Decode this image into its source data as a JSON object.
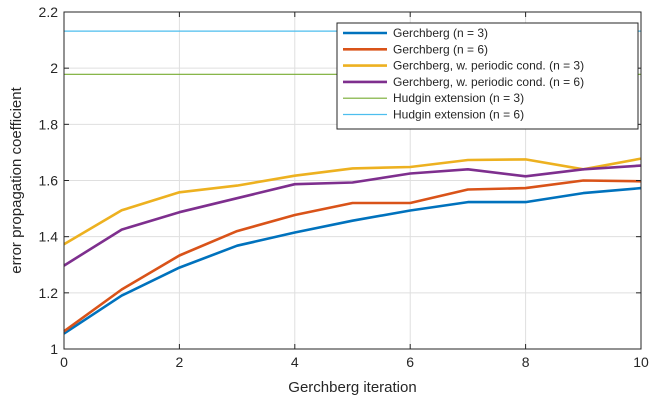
{
  "chart_data": {
    "type": "line",
    "xlabel": "Gerchberg iteration",
    "ylabel": "error propagation coefficient",
    "xlim": [
      0,
      10
    ],
    "ylim": [
      1,
      2.2
    ],
    "grid": true,
    "legend_position": "top-right",
    "xticks": [
      "0",
      "2",
      "4",
      "6",
      "8",
      "10"
    ],
    "yticks": [
      "1",
      "1.2",
      "1.4",
      "1.6",
      "1.8",
      "2",
      "2.2"
    ],
    "x": [
      0,
      1,
      2,
      3,
      4,
      5,
      6,
      7,
      8,
      9,
      10
    ],
    "series": [
      {
        "name": "Gerchberg (n = 3)",
        "color": "#0072BD",
        "values": [
          1.055,
          1.19,
          1.29,
          1.368,
          1.415,
          1.457,
          1.493,
          1.523,
          1.523,
          1.555,
          1.573
        ]
      },
      {
        "name": "Gerchberg (n = 6)",
        "color": "#D95319",
        "values": [
          1.063,
          1.212,
          1.333,
          1.42,
          1.477,
          1.52,
          1.52,
          1.568,
          1.573,
          1.6,
          1.597
        ]
      },
      {
        "name": "Gerchberg, w. periodic cond. (n = 3)",
        "color": "#EDB120",
        "values": [
          1.373,
          1.494,
          1.558,
          1.582,
          1.617,
          1.643,
          1.648,
          1.673,
          1.675,
          1.64,
          1.678
        ]
      },
      {
        "name": "Gerchberg, w. periodic cond. (n = 6)",
        "color": "#7E2F8E",
        "values": [
          1.297,
          1.425,
          1.487,
          1.537,
          1.587,
          1.593,
          1.625,
          1.64,
          1.615,
          1.64,
          1.653
        ]
      },
      {
        "name": "Hudgin extension (n = 3)",
        "color": "#77AC30",
        "values": [
          1.978,
          1.978,
          1.978,
          1.978,
          1.978,
          1.978,
          1.978,
          1.978,
          1.978,
          1.978,
          1.978
        ]
      },
      {
        "name": "Hudgin extension (n = 6)",
        "color": "#4DBEEE",
        "values": [
          2.132,
          2.132,
          2.132,
          2.132,
          2.132,
          2.132,
          2.132,
          2.132,
          2.132,
          2.132,
          2.132
        ]
      }
    ]
  }
}
